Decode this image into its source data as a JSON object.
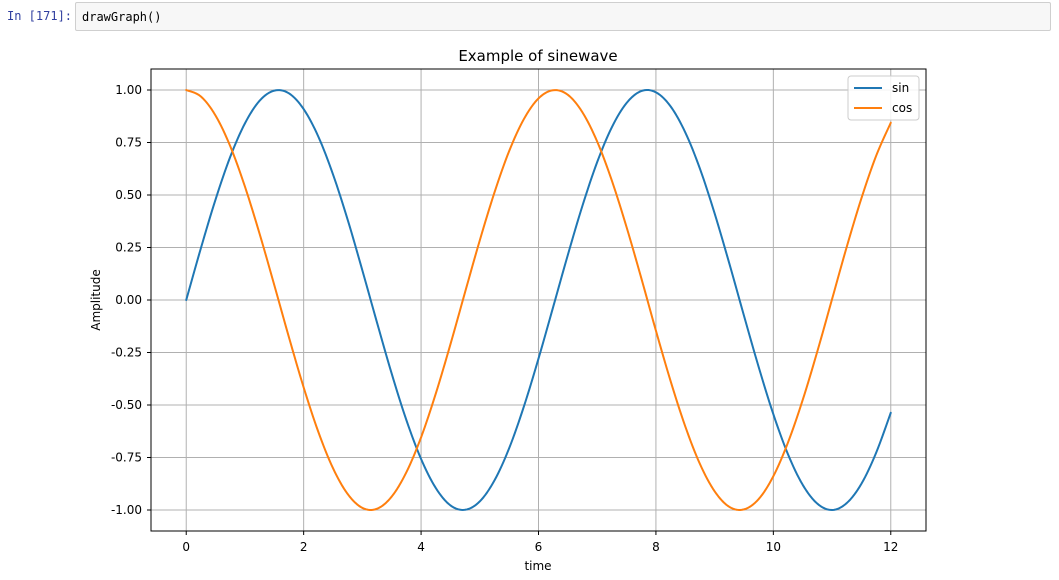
{
  "cell": {
    "prompt": "In [171]:",
    "code": "drawGraph()"
  },
  "chart_data": {
    "type": "line",
    "title": "Example of sinewave",
    "xlabel": "time",
    "ylabel": "Amplitude",
    "xlim": [
      -0.6,
      12.6
    ],
    "ylim": [
      -1.1,
      1.1
    ],
    "xticks": [
      0,
      2,
      4,
      6,
      8,
      10,
      12
    ],
    "xtick_labels": [
      "0",
      "2",
      "4",
      "6",
      "8",
      "10",
      "12"
    ],
    "yticks": [
      1.0,
      0.75,
      0.5,
      0.25,
      0.0,
      -0.25,
      -0.5,
      -0.75,
      -1.0
    ],
    "ytick_labels": [
      "1.00",
      "0.75",
      "0.50",
      "0.25",
      "0.00",
      "-0.25",
      "-0.50",
      "-0.75",
      "-1.00"
    ],
    "grid": true,
    "legend": "top-right",
    "x": [
      0.0,
      0.25,
      0.5,
      0.75,
      1.0,
      1.25,
      1.5,
      1.75,
      2.0,
      2.25,
      2.5,
      2.75,
      3.0,
      3.25,
      3.5,
      3.75,
      4.0,
      4.25,
      4.5,
      4.75,
      5.0,
      5.25,
      5.5,
      5.75,
      6.0,
      6.25,
      6.5,
      6.75,
      7.0,
      7.25,
      7.5,
      7.75,
      8.0,
      8.25,
      8.5,
      8.75,
      9.0,
      9.25,
      9.5,
      9.75,
      10.0,
      10.25,
      10.5,
      10.75,
      11.0,
      11.25,
      11.5,
      11.75,
      12.0
    ],
    "series": [
      {
        "name": "sin",
        "color": "#1f77b4",
        "values": [
          0.0,
          0.247,
          0.479,
          0.682,
          0.841,
          0.949,
          0.997,
          0.984,
          0.909,
          0.778,
          0.598,
          0.382,
          0.141,
          -0.108,
          -0.351,
          -0.572,
          -0.757,
          -0.895,
          -0.978,
          -0.999,
          -0.959,
          -0.859,
          -0.706,
          -0.508,
          -0.279,
          -0.033,
          0.215,
          0.45,
          0.657,
          0.823,
          0.938,
          0.995,
          0.989,
          0.922,
          0.798,
          0.625,
          0.412,
          0.174,
          -0.075,
          -0.319,
          -0.544,
          -0.735,
          -0.88,
          -0.97,
          -1.0,
          -0.967,
          -0.875,
          -0.728,
          -0.537
        ]
      },
      {
        "name": "cos",
        "color": "#ff7f0e",
        "values": [
          1.0,
          0.969,
          0.878,
          0.732,
          0.54,
          0.315,
          0.071,
          -0.178,
          -0.416,
          -0.628,
          -0.801,
          -0.924,
          -0.99,
          -0.994,
          -0.936,
          -0.82,
          -0.654,
          -0.446,
          -0.211,
          0.038,
          0.284,
          0.512,
          0.709,
          0.861,
          0.96,
          0.999,
          0.977,
          0.893,
          0.754,
          0.568,
          0.347,
          0.105,
          -0.146,
          -0.386,
          -0.602,
          -0.781,
          -0.911,
          -0.985,
          -0.997,
          -0.948,
          -0.839,
          -0.678,
          -0.476,
          -0.244,
          0.004,
          0.253,
          0.484,
          0.686,
          0.844
        ]
      }
    ]
  }
}
